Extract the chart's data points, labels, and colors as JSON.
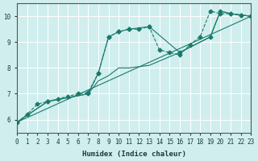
{
  "xlabel": "Humidex (Indice chaleur)",
  "ylabel": "",
  "xlim": [
    0,
    23
  ],
  "ylim": [
    5.5,
    10.5
  ],
  "yticks": [
    6,
    7,
    8,
    9,
    10
  ],
  "xticks": [
    0,
    1,
    2,
    3,
    4,
    5,
    6,
    7,
    8,
    9,
    10,
    11,
    12,
    13,
    14,
    15,
    16,
    17,
    18,
    19,
    20,
    21,
    22,
    23
  ],
  "bg_color": "#d0eeee",
  "line_color": "#1a7a6a",
  "grid_color": "#ffffff",
  "series": [
    {
      "x": [
        0,
        1,
        2,
        3,
        4,
        5,
        6,
        7,
        8,
        9,
        10,
        11,
        12,
        13,
        14,
        15,
        16,
        17,
        18,
        19,
        20,
        21,
        22,
        23
      ],
      "y": [
        5.9,
        6.2,
        6.6,
        6.7,
        6.8,
        6.9,
        7.0,
        7.05,
        7.8,
        9.2,
        9.4,
        9.5,
        9.5,
        9.6,
        8.7,
        8.6,
        8.5,
        8.9,
        9.2,
        10.2,
        10.1,
        10.1,
        10.05,
        10.0
      ],
      "marker": "D",
      "linestyle": "--"
    },
    {
      "x": [
        0,
        3,
        7,
        8,
        9,
        10,
        11,
        13,
        16,
        19,
        20,
        21,
        22,
        23
      ],
      "y": [
        5.9,
        6.7,
        7.0,
        7.5,
        7.7,
        8.0,
        8.0,
        8.1,
        8.6,
        9.2,
        10.2,
        10.1,
        10.05,
        10.0
      ],
      "marker": null,
      "linestyle": "-"
    },
    {
      "x": [
        0,
        23
      ],
      "y": [
        5.9,
        10.0
      ],
      "marker": null,
      "linestyle": "-"
    },
    {
      "x": [
        0,
        3,
        7,
        8,
        9,
        10,
        11,
        13,
        16,
        19,
        20,
        21,
        22,
        23
      ],
      "y": [
        5.9,
        6.7,
        7.0,
        7.8,
        9.2,
        9.4,
        9.5,
        9.6,
        8.6,
        9.2,
        10.2,
        10.1,
        10.05,
        10.0
      ],
      "marker": "D",
      "linestyle": "-"
    }
  ]
}
